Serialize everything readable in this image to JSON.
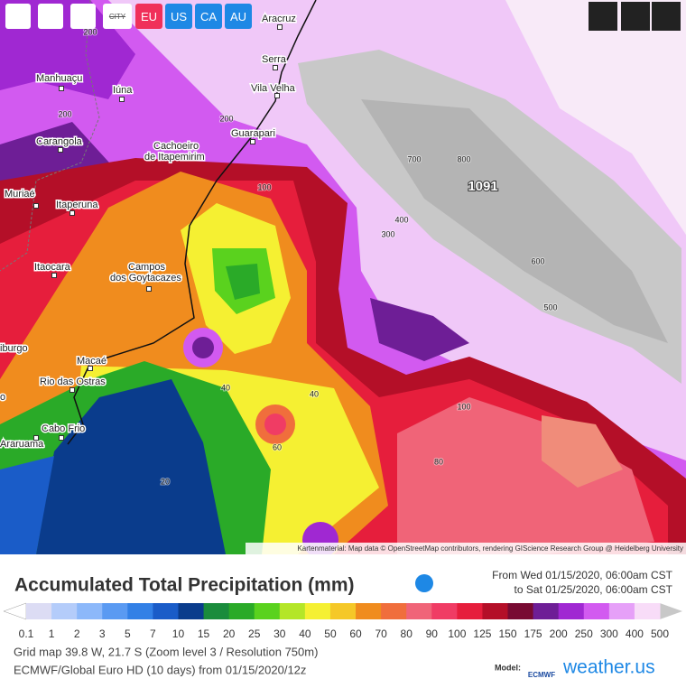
{
  "toolbar": {
    "buttons": [
      "CITY",
      "EU",
      "US",
      "CA",
      "AU"
    ]
  },
  "map": {
    "cities": [
      {
        "lines": [
          "Aracruz"
        ]
      },
      {
        "lines": [
          "Serra"
        ]
      },
      {
        "lines": [
          "Vila Velha"
        ]
      },
      {
        "lines": [
          "Manhuaçu"
        ]
      },
      {
        "lines": [
          "Iúna"
        ]
      },
      {
        "lines": [
          "Guarapari"
        ]
      },
      {
        "lines": [
          "Carangola"
        ]
      },
      {
        "lines": [
          "Cachoeiro",
          "de Itapemirim"
        ]
      },
      {
        "lines": [
          "Muriaé"
        ]
      },
      {
        "lines": [
          "Itaperuna"
        ]
      },
      {
        "lines": [
          "Itaocara"
        ]
      },
      {
        "lines": [
          "Campos",
          "dos Goytacazes"
        ]
      },
      {
        "lines": [
          "iburgo"
        ]
      },
      {
        "lines": [
          "Macaé"
        ]
      },
      {
        "lines": [
          "Rio das Ostras"
        ]
      },
      {
        "lines": [
          "o"
        ]
      },
      {
        "lines": [
          "Cabo Frio"
        ]
      },
      {
        "lines": [
          "Araruama"
        ]
      }
    ],
    "contour_labels": [
      "200",
      "200",
      "200",
      "700",
      "800",
      "1091",
      "100",
      "400",
      "300",
      "600",
      "500",
      "40",
      "40",
      "60",
      "100",
      "80",
      "20"
    ],
    "attribution": "Kartenmaterial: Map data © OpenStreetMap contributors, rendering GIScience Research Group @ Heidelberg University"
  },
  "panel": {
    "title": "Accumulated Total Precipitation (mm)",
    "period": {
      "from": "From Wed 01/15/2020, 06:00am CST",
      "to": "to Sat 01/25/2020, 06:00am CST"
    },
    "legend": {
      "labels": [
        "0.1",
        "1",
        "2",
        "3",
        "5",
        "7",
        "10",
        "15",
        "20",
        "25",
        "30",
        "40",
        "50",
        "60",
        "70",
        "80",
        "90",
        "100",
        "125",
        "150",
        "175",
        "200",
        "250",
        "300",
        "400",
        "500"
      ],
      "colors": [
        "#dcdcf4",
        "#b4ccfa",
        "#8cb8fa",
        "#5a9af2",
        "#3280e6",
        "#1a5cc8",
        "#0a3c8c",
        "#1a8c3c",
        "#2aaa28",
        "#5ad21e",
        "#b4e628",
        "#f5f032",
        "#f5c828",
        "#f08c1e",
        "#f06e3c",
        "#f06478",
        "#f03c64",
        "#e61e3c",
        "#b40f28",
        "#780a32",
        "#6e1e96",
        "#a028d2",
        "#d25af0",
        "#e6a0f8",
        "#f8dcf8"
      ]
    },
    "info": [
      "Grid map 39.8 W, 21.7 S (Zoom level 3 / Resolution 750m)",
      "ECMWF/Global Euro HD (10 days) from 01/15/2020/12z"
    ],
    "model": {
      "label": "Model:",
      "logo": "ECMWF",
      "site": "weather.us"
    }
  }
}
